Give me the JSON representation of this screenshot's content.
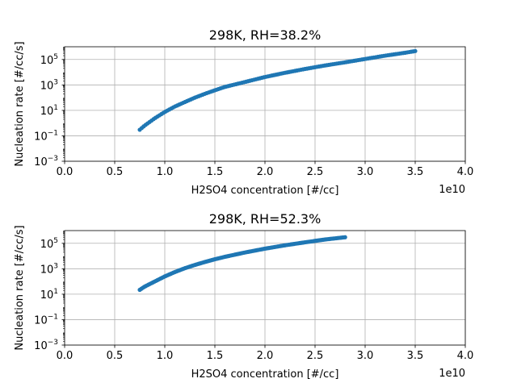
{
  "chart_data": [
    {
      "type": "scatter",
      "title": "298K, RH=38.2%",
      "xlabel": "H2SO4 concentration [#/cc]",
      "ylabel": "Nucleation rate [#/cc/s]",
      "x_offset_label": "1e10",
      "xlim": [
        0,
        40000000000.0
      ],
      "ylim": [
        0.001,
        1000000
      ],
      "yscale": "log",
      "grid": true,
      "x_ticks": [
        0,
        5000000000.0,
        10000000000.0,
        15000000000.0,
        20000000000.0,
        25000000000.0,
        30000000000.0,
        35000000000.0,
        40000000000.0
      ],
      "x_tick_labels": [
        "0.0",
        "0.5",
        "1.0",
        "1.5",
        "2.0",
        "2.5",
        "3.0",
        "3.5",
        "4.0"
      ],
      "y_ticks": [
        0.001,
        0.1,
        10,
        1000,
        100000
      ],
      "y_tick_labels": [
        [
          "10",
          "−3"
        ],
        [
          "10",
          "−1"
        ],
        [
          "10",
          "1"
        ],
        [
          "10",
          "3"
        ],
        [
          "10",
          "5"
        ]
      ],
      "series": [
        {
          "color": "#1f77b4",
          "x": [
            7500000000.0,
            8000000000.0,
            9000000000.0,
            10000000000.0,
            11000000000.0,
            12000000000.0,
            13000000000.0,
            14000000000.0,
            15000000000.0,
            16000000000.0,
            18000000000.0,
            20000000000.0,
            22000000000.0,
            24000000000.0,
            26000000000.0,
            28000000000.0,
            30000000000.0,
            32000000000.0,
            34000000000.0,
            35000000000.0
          ],
          "y": [
            0.3,
            0.65,
            2.4,
            7.5,
            20,
            45,
            100,
            200,
            380,
            700,
            1700,
            4200,
            9000,
            18000,
            34000,
            60000,
            110000,
            200000,
            340000,
            460000
          ]
        }
      ]
    },
    {
      "type": "scatter",
      "title": "298K, RH=52.3%",
      "xlabel": "H2SO4 concentration [#/cc]",
      "ylabel": "Nucleation rate [#/cc/s]",
      "x_offset_label": "1e10",
      "xlim": [
        0,
        40000000000.0
      ],
      "ylim": [
        0.001,
        1000000
      ],
      "yscale": "log",
      "grid": true,
      "x_ticks": [
        0,
        5000000000.0,
        10000000000.0,
        15000000000.0,
        20000000000.0,
        25000000000.0,
        30000000000.0,
        35000000000.0,
        40000000000.0
      ],
      "x_tick_labels": [
        "0.0",
        "0.5",
        "1.0",
        "1.5",
        "2.0",
        "2.5",
        "3.0",
        "3.5",
        "4.0"
      ],
      "y_ticks": [
        0.001,
        0.1,
        10,
        1000,
        100000
      ],
      "y_tick_labels": [
        [
          "10",
          "−3"
        ],
        [
          "10",
          "−1"
        ],
        [
          "10",
          "1"
        ],
        [
          "10",
          "3"
        ],
        [
          "10",
          "5"
        ]
      ],
      "series": [
        {
          "color": "#1f77b4",
          "x": [
            7500000000.0,
            8000000000.0,
            9000000000.0,
            10000000000.0,
            11000000000.0,
            12000000000.0,
            13000000000.0,
            14000000000.0,
            15000000000.0,
            16000000000.0,
            18000000000.0,
            20000000000.0,
            22000000000.0,
            24000000000.0,
            26000000000.0,
            28000000000.0
          ],
          "y": [
            22,
            40,
            100,
            250,
            550,
            1100,
            2000,
            3400,
            5600,
            8700,
            19000,
            38000,
            70000,
            120000,
            200000,
            300000
          ]
        }
      ]
    }
  ]
}
